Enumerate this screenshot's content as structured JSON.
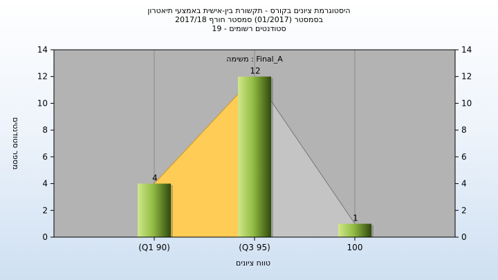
{
  "titles": [
    "היסטוגרמת ציונים בקורס - תקשורת בין-אישית באמצעי תיאטרון",
    "בסמסטר (01/2017) סמסטר חורף 2017/18",
    "סטודנטים רשומים - 19"
  ],
  "chart_data": {
    "type": "bar",
    "plot_title": "משימה : Final_A",
    "categories": [
      "(Q1 90)",
      "(Q3 95)",
      "100"
    ],
    "values": [
      4,
      12,
      1
    ],
    "xlabel": "טווח ציונים",
    "ylabel": "מספר סטודנטים",
    "ylim": [
      0,
      14
    ],
    "yticks": [
      0,
      2,
      4,
      6,
      8,
      10,
      12,
      14
    ],
    "grid": "vertical",
    "bar_colors": [
      "#c6e07a",
      "#7da434",
      "#3e5a14"
    ],
    "plot_background": "#b3b3b3",
    "quartile_fill_left": "#ffcc55",
    "quartile_fill_right": "#c4c4c4"
  }
}
